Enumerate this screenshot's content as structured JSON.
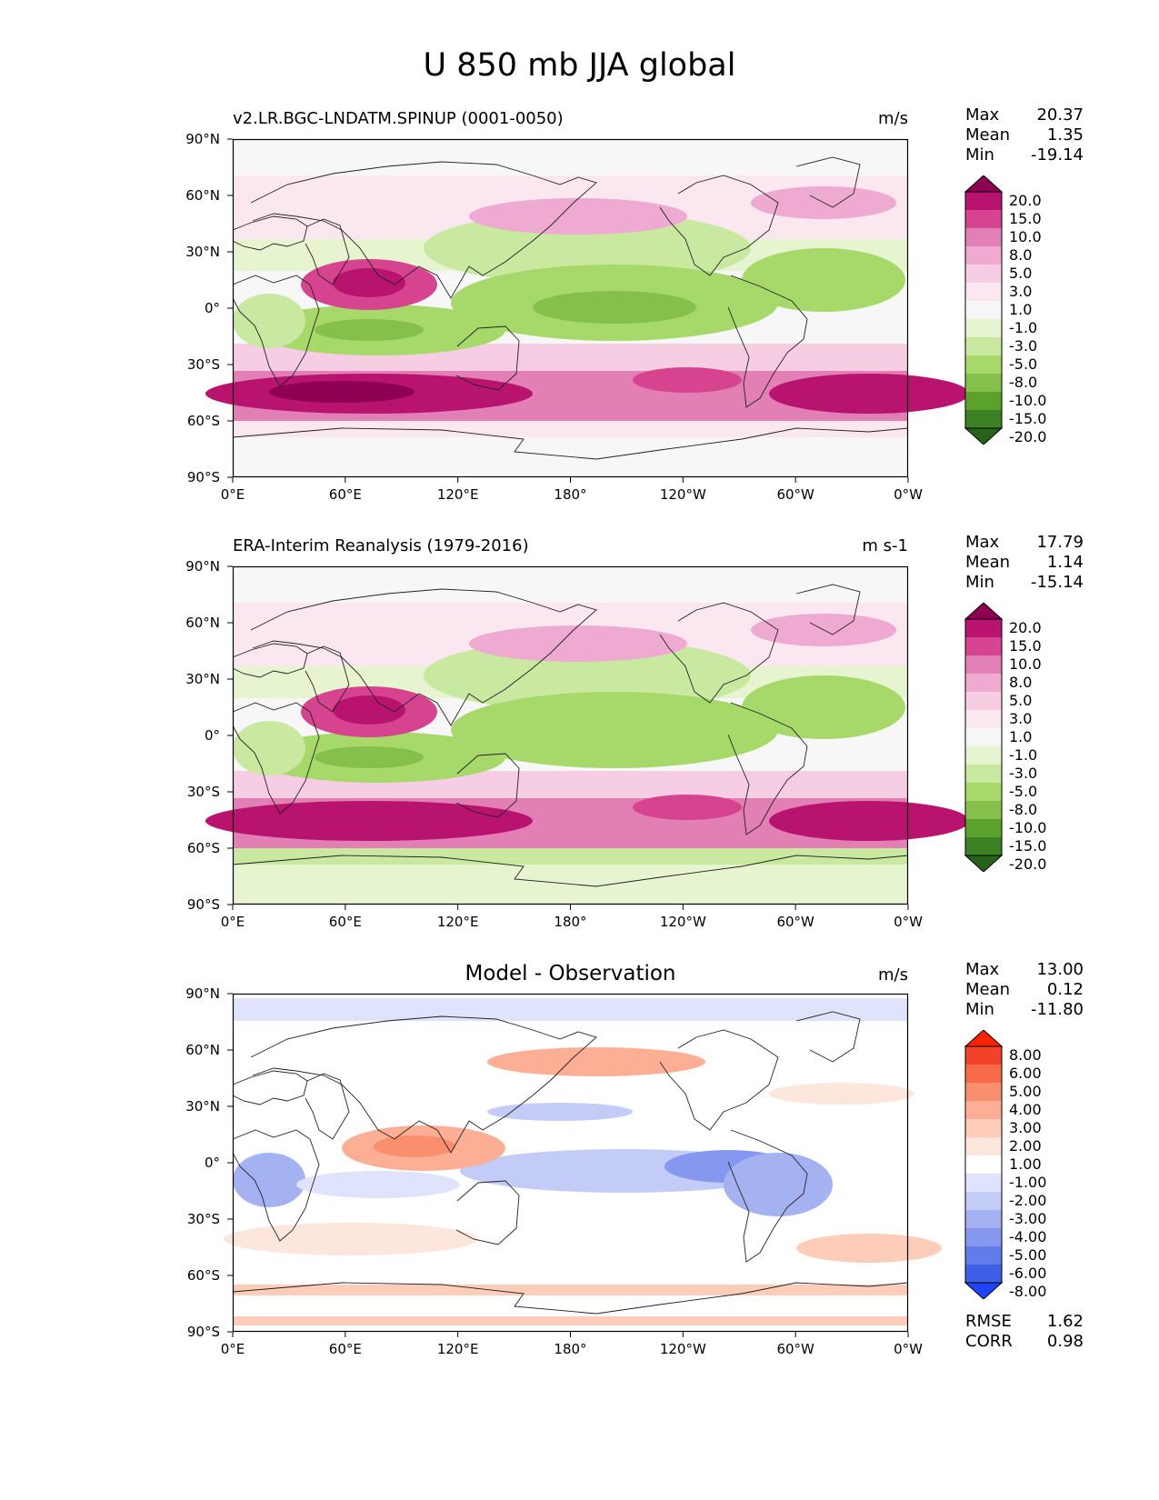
{
  "title": "U 850 mb JJA global",
  "x_ticks": [
    "0°E",
    "60°E",
    "120°E",
    "180°",
    "120°W",
    "60°W",
    "0°W"
  ],
  "y_ticks": [
    "90°N",
    "60°N",
    "30°N",
    "0°",
    "30°S",
    "60°S",
    "90°S"
  ],
  "panels": [
    {
      "left_label": "v2.LR.BGC-LNDATM.SPINUP (0001-0050)",
      "center_label": "",
      "units": "m/s",
      "stats": {
        "max_label": "Max",
        "max": "20.37",
        "mean_label": "Mean",
        "mean": "1.35",
        "min_label": "Min",
        "min": "-19.14"
      },
      "colorbar": {
        "labels": [
          "20.0",
          "15.0",
          "10.0",
          "8.0",
          "5.0",
          "3.0",
          "1.0",
          "-1.0",
          "-3.0",
          "-5.0",
          "-8.0",
          "-10.0",
          "-15.0",
          "-20.0"
        ],
        "colors": [
          "#8e0152",
          "#b7136f",
          "#d6448f",
          "#e27fb4",
          "#eeaad0",
          "#f6cde3",
          "#fbe7f0",
          "#f7f7f7",
          "#e6f5d0",
          "#c9e8a0",
          "#a6d96a",
          "#84c04a",
          "#5ba22c",
          "#3c8123",
          "#276419"
        ]
      },
      "map_kind": "model"
    },
    {
      "left_label": "ERA-Interim Reanalysis (1979-2016)",
      "center_label": "",
      "units": "m s-1",
      "stats": {
        "max_label": "Max",
        "max": "17.79",
        "mean_label": "Mean",
        "mean": "1.14",
        "min_label": "Min",
        "min": "-15.14"
      },
      "colorbar": {
        "labels": [
          "20.0",
          "15.0",
          "10.0",
          "8.0",
          "5.0",
          "3.0",
          "1.0",
          "-1.0",
          "-3.0",
          "-5.0",
          "-8.0",
          "-10.0",
          "-15.0",
          "-20.0"
        ],
        "colors": [
          "#8e0152",
          "#b7136f",
          "#d6448f",
          "#e27fb4",
          "#eeaad0",
          "#f6cde3",
          "#fbe7f0",
          "#f7f7f7",
          "#e6f5d0",
          "#c9e8a0",
          "#a6d96a",
          "#84c04a",
          "#5ba22c",
          "#3c8123",
          "#276419"
        ]
      },
      "map_kind": "obs"
    },
    {
      "left_label": "",
      "center_label": "Model - Observation",
      "units": "m/s",
      "stats": {
        "max_label": "Max",
        "max": "13.00",
        "mean_label": "Mean",
        "mean": "0.12",
        "min_label": "Min",
        "min": "-11.80"
      },
      "colorbar": {
        "labels": [
          "8.00",
          "6.00",
          "5.00",
          "4.00",
          "3.00",
          "2.00",
          "1.00",
          "-1.00",
          "-2.00",
          "-3.00",
          "-4.00",
          "-5.00",
          "-6.00",
          "-8.00"
        ],
        "colors": [
          "#ff2200",
          "#f2432a",
          "#f76b4b",
          "#fa8f6f",
          "#fcaf95",
          "#fdcdb9",
          "#fde6dc",
          "#ffffff",
          "#dfe3fb",
          "#c3ccf7",
          "#a4b2f2",
          "#8597ee",
          "#627cea",
          "#3f5fe6",
          "#1f44ff"
        ]
      },
      "map_kind": "diff",
      "rmse_label": "RMSE",
      "rmse": "1.62",
      "corr_label": "CORR",
      "corr": "0.98"
    }
  ]
}
